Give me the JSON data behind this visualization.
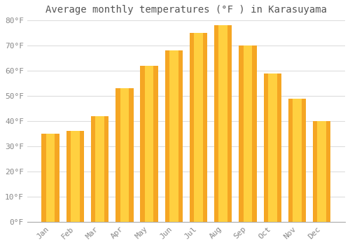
{
  "title": "Average monthly temperatures (°F ) in Karasuyama",
  "months": [
    "Jan",
    "Feb",
    "Mar",
    "Apr",
    "May",
    "Jun",
    "Jul",
    "Aug",
    "Sep",
    "Oct",
    "Nov",
    "Dec"
  ],
  "values": [
    35,
    36,
    42,
    53,
    62,
    68,
    75,
    78,
    70,
    59,
    49,
    40
  ],
  "bar_color_outer": "#F5A623",
  "bar_color_inner": "#FFD040",
  "ylim": [
    0,
    80
  ],
  "yticks": [
    0,
    10,
    20,
    30,
    40,
    50,
    60,
    70,
    80
  ],
  "ytick_labels": [
    "0°F",
    "10°F",
    "20°F",
    "30°F",
    "40°F",
    "50°F",
    "60°F",
    "70°F",
    "80°F"
  ],
  "background_color": "#ffffff",
  "grid_color": "#dddddd",
  "title_fontsize": 10,
  "tick_fontsize": 8,
  "bar_width": 0.72
}
